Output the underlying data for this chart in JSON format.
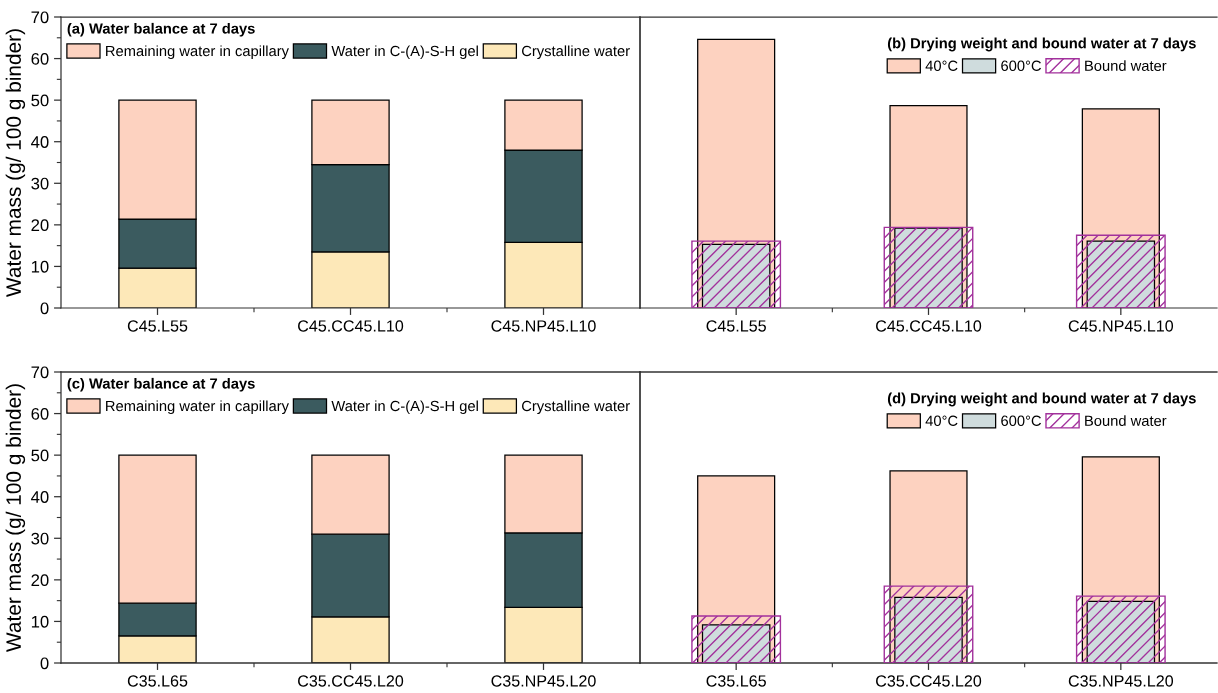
{
  "chart_data": [
    {
      "type": "bar",
      "stacked": true,
      "legend_title": "(a) Water balance at 7 days",
      "legend": "top left",
      "ylabel": "Water mass (g/ 100 g binder)",
      "categories": [
        "C45.L55",
        "C45.CC45.L10",
        "C45.NP45.L10"
      ],
      "ylim": [
        0,
        70
      ],
      "yticks": [
        0,
        10,
        20,
        30,
        40,
        50,
        60,
        70
      ],
      "series": [
        {
          "name": "Crystalline water",
          "color": "#fde8b8",
          "values": [
            9.6,
            13.5,
            15.8
          ]
        },
        {
          "name": "Water in C-(A)-S-H gel",
          "color": "#3b5b5f",
          "values": [
            11.8,
            21.0,
            22.2
          ]
        },
        {
          "name": "Remaining water in capillary",
          "color": "#fdd2c0",
          "values": [
            28.6,
            15.5,
            12.0
          ]
        }
      ]
    },
    {
      "type": "bar",
      "legend_title": "(b) Drying weight and bound water at 7 days",
      "legend": "top right",
      "tick_labels": "x",
      "categories": [
        "C45.L55",
        "C45.CC45.L10",
        "C45.NP45.L10"
      ],
      "ylim": [
        0,
        70
      ],
      "yticks": [
        0,
        10,
        20,
        30,
        40,
        50,
        60,
        70
      ],
      "series": [
        {
          "name": "40°C",
          "color": "#fdd2c0",
          "values": [
            64.6,
            48.7,
            47.9
          ]
        },
        {
          "name": "600°C",
          "color": "#cfdcdd",
          "values": [
            15.3,
            19.2,
            16.1
          ]
        },
        {
          "name": "Bound water",
          "color": "#a2319c",
          "values": [
            16.1,
            19.4,
            17.5
          ]
        }
      ]
    },
    {
      "type": "bar",
      "stacked": true,
      "legend_title": "(c) Water balance at 7 days",
      "legend": "top left",
      "ylabel": "Water mass (g/ 100 g binder)",
      "categories": [
        "C35.L65",
        "C35.CC45.L20",
        "C35.NP45.L20"
      ],
      "ylim": [
        0,
        70
      ],
      "yticks": [
        0,
        10,
        20,
        30,
        40,
        50,
        60,
        70
      ],
      "series": [
        {
          "name": "Crystalline water",
          "color": "#fde8b8",
          "values": [
            6.5,
            11.1,
            13.4
          ]
        },
        {
          "name": "Water in C-(A)-S-H gel",
          "color": "#3b5b5f",
          "values": [
            7.9,
            19.9,
            17.9
          ]
        },
        {
          "name": "Remaining water in capillary",
          "color": "#fdd2c0",
          "values": [
            35.6,
            19.0,
            18.7
          ]
        }
      ]
    },
    {
      "type": "bar",
      "legend_title": "(d) Drying weight and bound water at 7 days",
      "legend": "top right",
      "tick_labels": "x",
      "categories": [
        "C35.L65",
        "C35.CC45.L20",
        "C35.NP45.L20"
      ],
      "ylim": [
        0,
        70
      ],
      "yticks": [
        0,
        10,
        20,
        30,
        40,
        50,
        60,
        70
      ],
      "series": [
        {
          "name": "40°C",
          "color": "#fdd2c0",
          "values": [
            45.0,
            46.2,
            49.6
          ]
        },
        {
          "name": "600°C",
          "color": "#cfdcdd",
          "values": [
            9.2,
            15.8,
            14.8
          ]
        },
        {
          "name": "Bound water",
          "color": "#a2319c",
          "values": [
            11.3,
            18.5,
            16.1
          ]
        }
      ]
    }
  ]
}
